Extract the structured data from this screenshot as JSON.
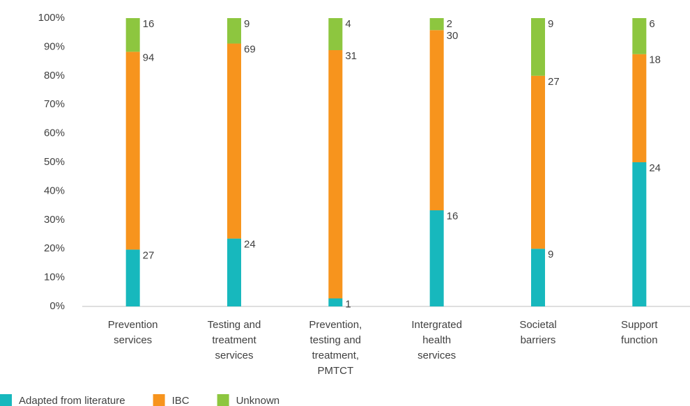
{
  "chart_data": {
    "type": "bar",
    "stacking": "percent",
    "categories": [
      "Prevention services",
      "Testing and treatment services",
      "Prevention, testing and treatment, PMTCT",
      "Intergrated health services",
      "Societal barriers",
      "Support function"
    ],
    "series": [
      {
        "name": "Adapted from literature",
        "color": "#17b8bd",
        "values": [
          27,
          24,
          1,
          16,
          9,
          24
        ]
      },
      {
        "name": "IBC",
        "color": "#f7941d",
        "values": [
          94,
          69,
          31,
          30,
          27,
          18
        ]
      },
      {
        "name": "Unknown",
        "color": "#8dc63f",
        "values": [
          16,
          9,
          4,
          2,
          9,
          6
        ]
      }
    ],
    "ylim": [
      0,
      100
    ],
    "yticks": [
      {
        "value": 0,
        "label": "0%"
      },
      {
        "value": 10,
        "label": "10%"
      },
      {
        "value": 20,
        "label": "20%"
      },
      {
        "value": 30,
        "label": "30%"
      },
      {
        "value": 40,
        "label": "40%"
      },
      {
        "value": 50,
        "label": "50%"
      },
      {
        "value": 60,
        "label": "60%"
      },
      {
        "value": 70,
        "label": "70%"
      },
      {
        "value": 80,
        "label": "80%"
      },
      {
        "value": 90,
        "label": "90%"
      },
      {
        "value": 100,
        "label": "100%"
      }
    ],
    "legend": "bottom-left",
    "data_labels": true
  }
}
